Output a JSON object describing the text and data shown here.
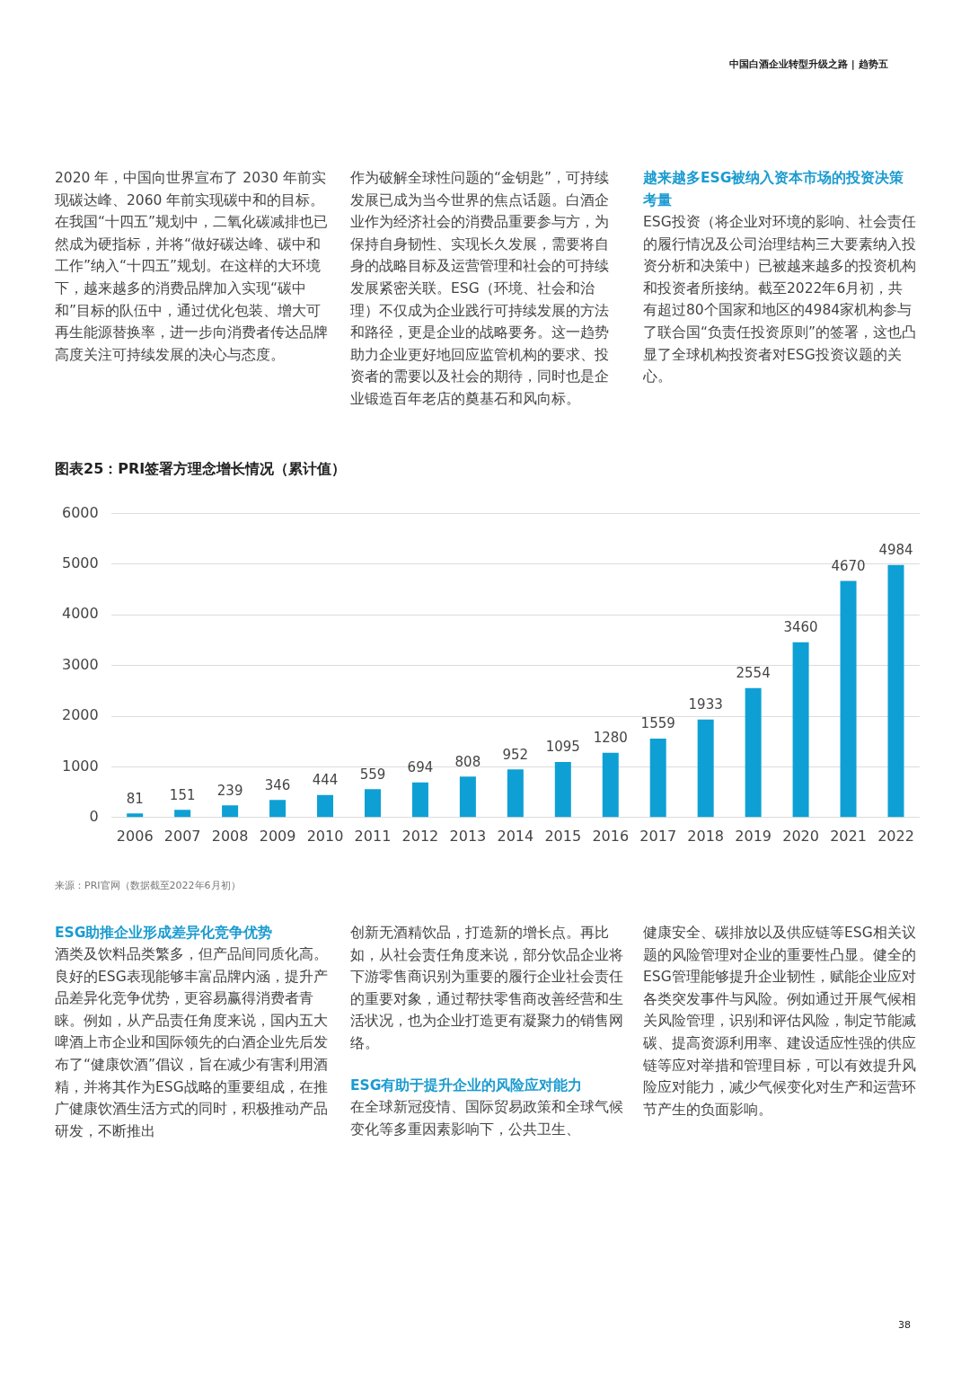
{
  "chart_data": {
    "type": "bar",
    "title": "图表25：PRI签署方理念增长情况（累计值）",
    "categories": [
      "2006",
      "2007",
      "2008",
      "2009",
      "2010",
      "2011",
      "2012",
      "2013",
      "2014",
      "2015",
      "2016",
      "2017",
      "2018",
      "2019",
      "2020",
      "2021",
      "2022"
    ],
    "values": [
      81,
      151,
      239,
      346,
      444,
      559,
      694,
      808,
      952,
      1095,
      1280,
      1559,
      1933,
      2554,
      3460,
      4670,
      4984
    ],
    "color": "#0ea0d4",
    "ylim": [
      0,
      6000
    ],
    "yticks": [
      0,
      1000,
      2000,
      3000,
      4000,
      5000,
      6000
    ],
    "grid": "y",
    "data_labels": true,
    "annotations": [
      "中国白酒企业转型升级之路 | 趋势五",
      "2020 年，中国向世界宣布了 2030 年前实现碳达峰、2060 年前实现碳中和的目标。在我国“十四五”规划中，二氧化碳减排也已然成为硬指标，并将“做好碳达峰、碳中和工作”纳入“十四五”规划。在这样的大环境下，越来越多的消费品牌加入实现“碳中和”目标的队伍中，通过优化包装、增大可再生能源替换率，进一步向消费者传达品牌高度关注可持续发展的决心与态度。",
      "作为破解全球性问题的“金钥匙”，可持续发展已成为当今世界的焦点话题。白酒企业作为经济社会的消费品重要参与方，为保持自身韧性、实现长久发展，需要将自身的战略目标及运营管理和社会的可持续发展紧密关联。ESG（环境、社会和治理）不仅成为企业践行可持续发展的方法和路径，更是企业的战略要务。这一趋势助力企业更好地回应监管机构的要求、投资者的需要以及社会的期待，同时也是企业锻造百年老店的奠基石和风向标。",
      "越来越多ESG被纳入资本市场的投资决策考量",
      "ESG投资（将企业对环境的影响、社会责任的履行情况及公司治理结构三大要素纳入投资分析和决策中）已被越来越多的投资机构和投资者所接纳。截至2022年6月初，共有超过80个国家和地区的4984家机构参与了联合国“负责任投资原则”的签署，这也凸显了全球机构投资者对ESG投资议题的关心。",
      "来源：PRI官网（数据截至2022年6月初）",
      "ESG助推企业形成差异化竞争优势",
      "酒类及饮料品类繁多，但产品间同质化高。良好的ESG表现能够丰富品牌内涵，提升产品差异化竞争优势，更容易赢得消费者青睐。例如，从产品责任角度来说，国内五大啤酒上市企业和国际领先的白酒企业先后发布了“健康饮酒”倡议，旨在减少有害利用酒精，并将其作为ESG战略的重要组成，在推广健康饮酒生活方式的同时，积极推动产品研发，不断推出",
      "创新无酒精饮品，打造新的增长点。再比如，从社会责任角度来说，部分饮品企业将下游零售商识别为重要的履行企业社会责任的重要对象，通过帮扶零售商改善经营和生活状况，也为企业打造更有凝聚力的销售网络。",
      "ESG有助于提升企业的风险应对能力",
      "在全球新冠疫情、国际贸易政策和全球气候变化等多重因素影响下，公共卫生、",
      "健康安全、碳排放以及供应链等ESG相关议题的风险管理对企业的重要性凸显。健全的ESG管理能够提升企业韧性，赋能企业应对各类突发事件与风险。例如通过开展气候相关风险管理，识别和评估风险，制定节能减碳、提高资源利用率、建设适应性强的供应链等应对举措和管理目标，可以有效提升风险应对能力，减少气候变化对生产和运营环节产生的负面影响。",
      "38"
    ]
  }
}
